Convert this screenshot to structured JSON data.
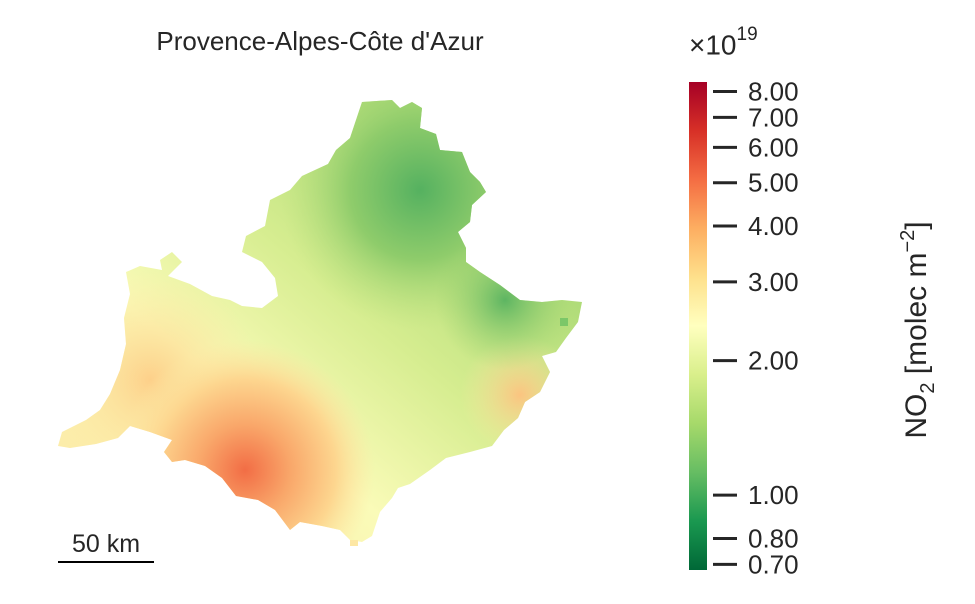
{
  "title": "Provence-Alpes-Côte d'Azur",
  "scale_bar": {
    "label": "50 km"
  },
  "colorbar": {
    "exponent_label": "×10",
    "exponent_power": "19",
    "label_main": "NO",
    "label_sub": "2",
    "label_units_pre": " [molec m",
    "label_units_sup": "−2",
    "label_units_post": "]",
    "scale": "log",
    "range": [
      0.68,
      8.4
    ],
    "colormap": [
      "#006837",
      "#1a9850",
      "#66bd63",
      "#a6d96a",
      "#d9ef8b",
      "#ffffbf",
      "#fee08b",
      "#fdae61",
      "#f46d43",
      "#d73027",
      "#a50026"
    ],
    "ticks": [
      {
        "value": 8.0,
        "label": "8.00"
      },
      {
        "value": 7.0,
        "label": "7.00"
      },
      {
        "value": 6.0,
        "label": "6.00"
      },
      {
        "value": 5.0,
        "label": "5.00"
      },
      {
        "value": 4.0,
        "label": "4.00"
      },
      {
        "value": 3.0,
        "label": "3.00"
      },
      {
        "value": 2.0,
        "label": "2.00"
      },
      {
        "value": 1.0,
        "label": "1.00"
      },
      {
        "value": 0.8,
        "label": "0.80"
      },
      {
        "value": 0.7,
        "label": "0.70"
      }
    ]
  }
}
